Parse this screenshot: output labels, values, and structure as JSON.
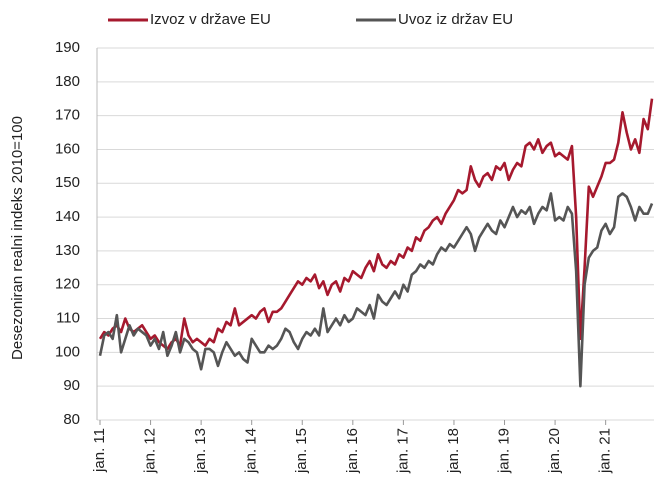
{
  "chart_data": {
    "type": "line",
    "y_label": "Desezoniran realni indeks 2010=100",
    "categories": [
      "jan. 11",
      null,
      null,
      null,
      null,
      null,
      null,
      null,
      null,
      null,
      null,
      null,
      "jan. 12",
      null,
      null,
      null,
      null,
      null,
      null,
      null,
      null,
      null,
      null,
      null,
      "jan. 13",
      null,
      null,
      null,
      null,
      null,
      null,
      null,
      null,
      null,
      null,
      null,
      "jan. 14",
      null,
      null,
      null,
      null,
      null,
      null,
      null,
      null,
      null,
      null,
      null,
      "jan. 15",
      null,
      null,
      null,
      null,
      null,
      null,
      null,
      null,
      null,
      null,
      null,
      "jan. 16",
      null,
      null,
      null,
      null,
      null,
      null,
      null,
      null,
      null,
      null,
      null,
      "jan. 17",
      null,
      null,
      null,
      null,
      null,
      null,
      null,
      null,
      null,
      null,
      null,
      "jan. 18",
      null,
      null,
      null,
      null,
      null,
      null,
      null,
      null,
      null,
      null,
      null,
      "jan. 19",
      null,
      null,
      null,
      null,
      null,
      null,
      null,
      null,
      null,
      null,
      null,
      "jan. 20",
      null,
      null,
      null,
      null,
      null,
      null,
      null,
      null,
      null,
      null,
      null,
      "jan. 21",
      null,
      null,
      null,
      null,
      null,
      null,
      null,
      null,
      null,
      null,
      null
    ],
    "series": [
      {
        "name": "Izvoz v države EU",
        "color": "#a6192e",
        "values": [
          104,
          106,
          105,
          107,
          108,
          106,
          110,
          107,
          106,
          107,
          108,
          106,
          104,
          105,
          103,
          102,
          101,
          103,
          104,
          102,
          110,
          105,
          103,
          104,
          103,
          102,
          104,
          103,
          107,
          106,
          109,
          108,
          113,
          108,
          109,
          110,
          111,
          110,
          112,
          113,
          109,
          112,
          112,
          113,
          115,
          117,
          119,
          121,
          120,
          122,
          121,
          123,
          119,
          121,
          117,
          120,
          121,
          118,
          122,
          121,
          124,
          123,
          122,
          125,
          127,
          124,
          129,
          126,
          125,
          127,
          126,
          129,
          128,
          131,
          130,
          134,
          133,
          136,
          137,
          139,
          140,
          138,
          141,
          143,
          145,
          148,
          147,
          148,
          155,
          151,
          149,
          152,
          153,
          151,
          155,
          154,
          156,
          151,
          154,
          156,
          155,
          161,
          162,
          160,
          163,
          159,
          161,
          162,
          158,
          159,
          158,
          157,
          161,
          140,
          104,
          125,
          149,
          146,
          149,
          152,
          156,
          156,
          157,
          162,
          171,
          165,
          160,
          163,
          159,
          169,
          166,
          175
        ]
      },
      {
        "name": "Uvoz iz držav EU",
        "color": "#555555",
        "values": [
          99,
          105,
          106,
          104,
          111,
          100,
          104,
          108,
          105,
          107,
          106,
          105,
          102,
          104,
          101,
          106,
          99,
          102,
          106,
          100,
          104,
          103,
          101,
          100,
          95,
          101,
          101,
          100,
          96,
          100,
          103,
          101,
          99,
          100,
          98,
          97,
          104,
          102,
          100,
          100,
          102,
          101,
          102,
          104,
          107,
          106,
          103,
          101,
          104,
          106,
          105,
          107,
          105,
          113,
          106,
          108,
          110,
          108,
          111,
          109,
          110,
          113,
          112,
          111,
          114,
          110,
          117,
          115,
          114,
          116,
          118,
          116,
          120,
          118,
          123,
          124,
          126,
          125,
          127,
          126,
          129,
          131,
          130,
          132,
          131,
          133,
          135,
          137,
          135,
          130,
          134,
          136,
          138,
          136,
          135,
          139,
          137,
          140,
          143,
          140,
          142,
          141,
          143,
          138,
          141,
          143,
          142,
          147,
          139,
          140,
          139,
          143,
          141,
          124,
          90,
          120,
          128,
          130,
          131,
          136,
          138,
          135,
          137,
          146,
          147,
          146,
          143,
          139,
          143,
          141,
          141,
          144
        ]
      }
    ],
    "ylim": [
      80,
      190
    ],
    "yticks": [
      80,
      90,
      100,
      110,
      120,
      130,
      140,
      150,
      160,
      170,
      180,
      190
    ],
    "grid": true
  }
}
